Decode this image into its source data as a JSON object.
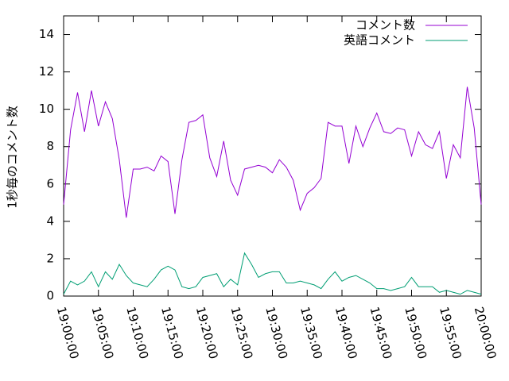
{
  "chart_data": {
    "type": "line",
    "ylabel": "1秒毎のコメント数",
    "x": [
      "19:00:00",
      "19:01:00",
      "19:02:00",
      "19:03:00",
      "19:04:00",
      "19:05:00",
      "19:06:00",
      "19:07:00",
      "19:08:00",
      "19:09:00",
      "19:10:00",
      "19:11:00",
      "19:12:00",
      "19:13:00",
      "19:14:00",
      "19:15:00",
      "19:16:00",
      "19:17:00",
      "19:18:00",
      "19:19:00",
      "19:20:00",
      "19:21:00",
      "19:22:00",
      "19:23:00",
      "19:24:00",
      "19:25:00",
      "19:26:00",
      "19:27:00",
      "19:28:00",
      "19:29:00",
      "19:30:00",
      "19:31:00",
      "19:32:00",
      "19:33:00",
      "19:34:00",
      "19:35:00",
      "19:36:00",
      "19:37:00",
      "19:38:00",
      "19:39:00",
      "19:40:00",
      "19:41:00",
      "19:42:00",
      "19:43:00",
      "19:44:00",
      "19:45:00",
      "19:46:00",
      "19:47:00",
      "19:48:00",
      "19:49:00",
      "19:50:00",
      "19:51:00",
      "19:52:00",
      "19:53:00",
      "19:54:00",
      "19:55:00",
      "19:56:00",
      "19:57:00",
      "19:58:00",
      "19:59:00",
      "20:00:00"
    ],
    "series": [
      {
        "name": "コメント数",
        "color": "#9400d3",
        "values": [
          4.9,
          8.9,
          10.9,
          8.8,
          11.0,
          9.1,
          10.4,
          9.5,
          7.3,
          4.2,
          6.8,
          6.8,
          6.9,
          6.7,
          7.5,
          7.2,
          4.4,
          7.3,
          9.3,
          9.4,
          9.7,
          7.4,
          6.4,
          8.3,
          6.2,
          5.4,
          6.8,
          6.9,
          7.0,
          6.9,
          6.6,
          7.3,
          6.9,
          6.2,
          4.6,
          5.5,
          5.8,
          6.3,
          9.3,
          9.1,
          9.1,
          7.1,
          9.1,
          8.0,
          9.0,
          9.8,
          8.8,
          8.7,
          9.0,
          8.9,
          7.5,
          8.8,
          8.1,
          7.9,
          8.8,
          6.3,
          8.1,
          7.4,
          11.2,
          9.0,
          4.9
        ]
      },
      {
        "name": "英語コメント",
        "color": "#009e73",
        "values": [
          0.1,
          0.8,
          0.6,
          0.8,
          1.3,
          0.5,
          1.3,
          0.9,
          1.7,
          1.1,
          0.7,
          0.6,
          0.5,
          0.9,
          1.4,
          1.6,
          1.4,
          0.5,
          0.4,
          0.5,
          1.0,
          1.1,
          1.2,
          0.5,
          0.9,
          0.6,
          2.3,
          1.7,
          1.0,
          1.2,
          1.3,
          1.3,
          0.7,
          0.7,
          0.8,
          0.7,
          0.6,
          0.4,
          0.9,
          1.3,
          0.8,
          1.0,
          1.1,
          0.9,
          0.7,
          0.4,
          0.4,
          0.3,
          0.4,
          0.5,
          1.0,
          0.5,
          0.5,
          0.5,
          0.2,
          0.3,
          0.2,
          0.1,
          0.3,
          0.2,
          0.1
        ]
      }
    ],
    "xlim": [
      "19:00:00",
      "20:00:00"
    ],
    "xticks": [
      "19:00:00",
      "19:05:00",
      "19:10:00",
      "19:15:00",
      "19:20:00",
      "19:25:00",
      "19:30:00",
      "19:35:00",
      "19:40:00",
      "19:45:00",
      "19:50:00",
      "19:55:00",
      "20:00:00"
    ],
    "ylim": [
      0,
      15
    ],
    "yticks": [
      0,
      2,
      4,
      6,
      8,
      10,
      12,
      14
    ],
    "legend": "top-right"
  }
}
